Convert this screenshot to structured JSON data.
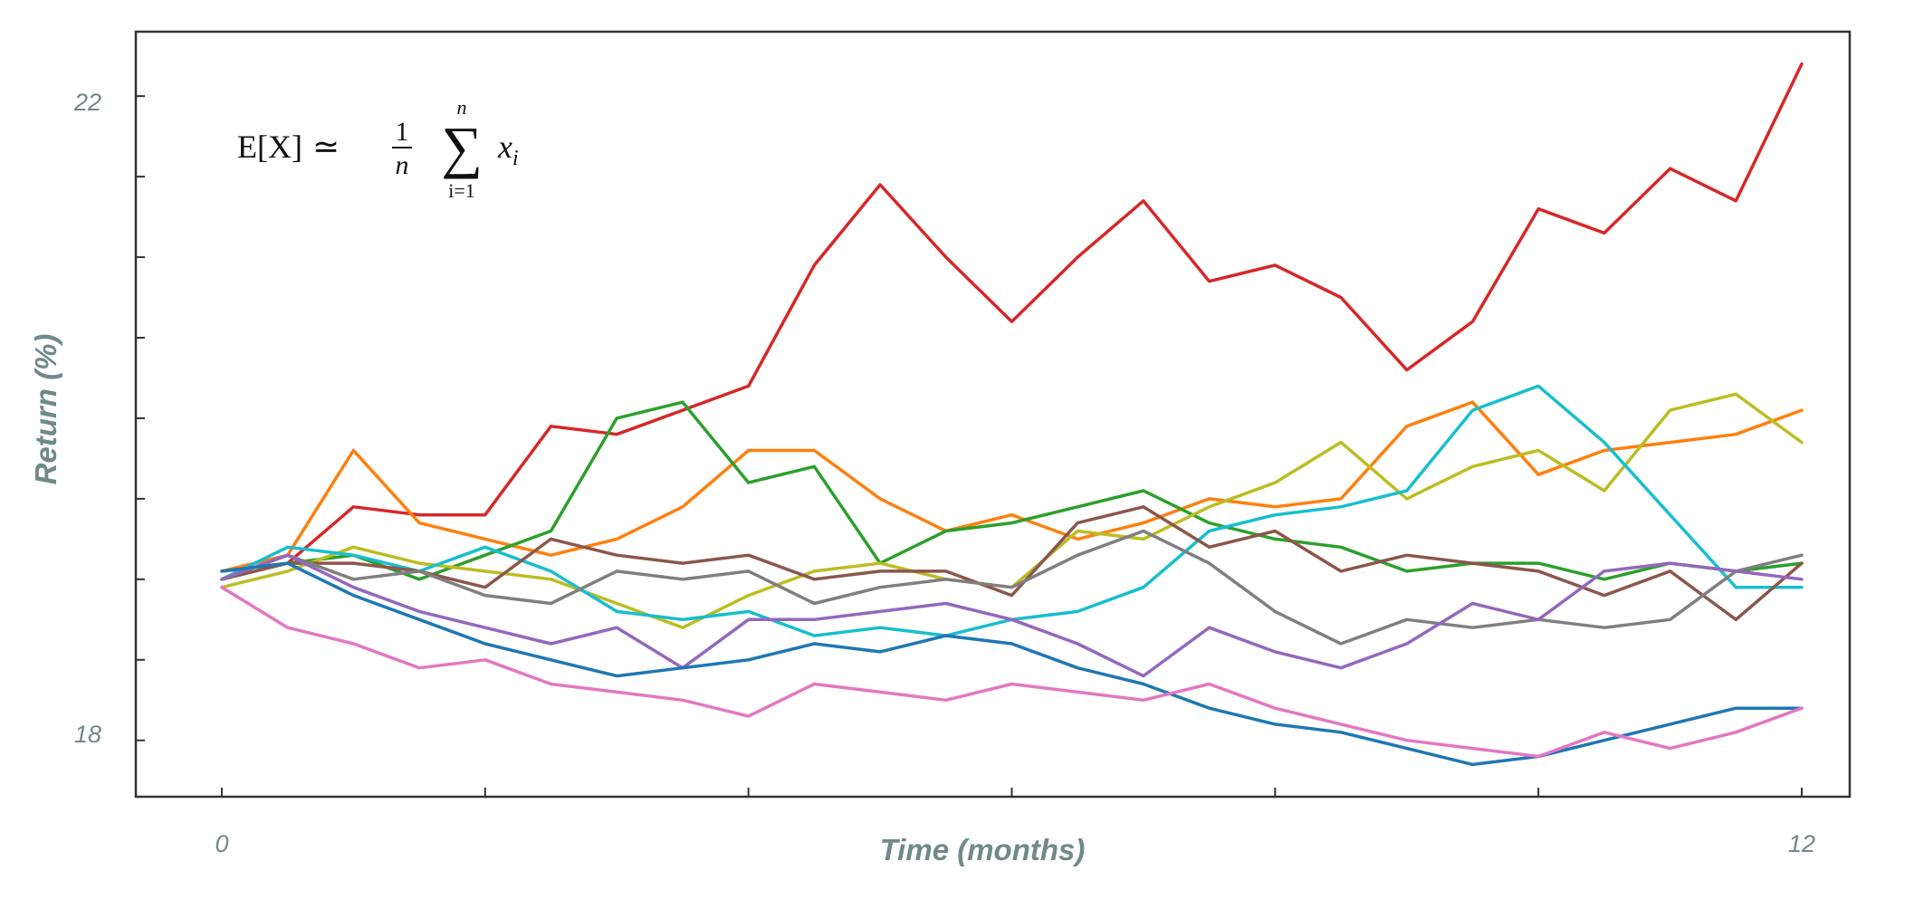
{
  "chart_data": {
    "type": "line",
    "title": "",
    "xlabel": "Time (months)",
    "ylabel": "Return (%)",
    "xlim": [
      0,
      12
    ],
    "ylim": [
      17.65,
      22.4
    ],
    "x_ticks": [
      0,
      12
    ],
    "x_tick_labels": [
      "0",
      "12"
    ],
    "y_ticks": [
      18,
      22
    ],
    "y_tick_labels": [
      "18",
      "22"
    ],
    "grid": false,
    "legend": "none",
    "annotation": {
      "lhs": "E[X]",
      "approx": "≃",
      "frac_num": "1",
      "frac_den": "n",
      "sum": "∑",
      "sum_upper": "n",
      "sum_lower": "i=1",
      "term": "x",
      "term_sub": "i"
    },
    "x": [
      0,
      0.5,
      1,
      1.5,
      2,
      2.5,
      3,
      3.5,
      4,
      4.5,
      5,
      5.5,
      6,
      6.5,
      7,
      7.5,
      8,
      8.5,
      9,
      9.5,
      10,
      10.5,
      11,
      11.5,
      12
    ],
    "series": [
      {
        "name": "red",
        "color": "#d62728",
        "values": [
          19.05,
          19.1,
          19.45,
          19.4,
          19.4,
          19.95,
          19.9,
          20.05,
          20.2,
          20.95,
          21.45,
          21.0,
          20.6,
          21.0,
          21.35,
          20.85,
          20.95,
          20.75,
          20.3,
          20.6,
          21.3,
          21.15,
          21.55,
          21.35,
          22.2
        ]
      },
      {
        "name": "orange",
        "color": "#ff7f0e",
        "values": [
          19.05,
          19.15,
          19.8,
          19.35,
          19.25,
          19.15,
          19.25,
          19.45,
          19.8,
          19.8,
          19.5,
          19.3,
          19.4,
          19.25,
          19.35,
          19.5,
          19.45,
          19.5,
          19.95,
          20.1,
          19.65,
          19.8,
          19.85,
          19.9,
          20.05
        ]
      },
      {
        "name": "green",
        "color": "#2ca02c",
        "values": [
          19.0,
          19.1,
          19.15,
          19.0,
          19.15,
          19.3,
          20.0,
          20.1,
          19.6,
          19.7,
          19.1,
          19.3,
          19.35,
          19.45,
          19.55,
          19.35,
          19.25,
          19.2,
          19.05,
          19.1,
          19.1,
          19.0,
          19.1,
          19.05,
          19.1
        ]
      },
      {
        "name": "olive",
        "color": "#bcbd22",
        "values": [
          18.95,
          19.05,
          19.2,
          19.1,
          19.05,
          19.0,
          18.85,
          18.7,
          18.9,
          19.05,
          19.1,
          19.0,
          18.95,
          19.3,
          19.25,
          19.45,
          19.6,
          19.85,
          19.5,
          19.7,
          19.8,
          19.55,
          20.05,
          20.15,
          19.85
        ]
      },
      {
        "name": "cyan",
        "color": "#17becf",
        "values": [
          19.0,
          19.2,
          19.15,
          19.05,
          19.2,
          19.05,
          18.8,
          18.75,
          18.8,
          18.65,
          18.7,
          18.65,
          18.75,
          18.8,
          18.95,
          19.3,
          19.4,
          19.45,
          19.55,
          20.05,
          20.2,
          19.85,
          19.4,
          18.95,
          18.95
        ]
      },
      {
        "name": "brown",
        "color": "#8c564b",
        "values": [
          19.0,
          19.1,
          19.1,
          19.05,
          18.95,
          19.25,
          19.15,
          19.1,
          19.15,
          19.0,
          19.05,
          19.05,
          18.9,
          19.35,
          19.45,
          19.2,
          19.3,
          19.05,
          19.15,
          19.1,
          19.05,
          18.9,
          19.05,
          18.75,
          19.1
        ]
      },
      {
        "name": "gray",
        "color": "#7f7f7f",
        "values": [
          19.0,
          19.15,
          19.0,
          19.05,
          18.9,
          18.85,
          19.05,
          19.0,
          19.05,
          18.85,
          18.95,
          19.0,
          18.95,
          19.15,
          19.3,
          19.1,
          18.8,
          18.6,
          18.75,
          18.7,
          18.75,
          18.7,
          18.75,
          19.05,
          19.15
        ]
      },
      {
        "name": "purple",
        "color": "#9467bd",
        "values": [
          19.0,
          19.15,
          18.95,
          18.8,
          18.7,
          18.6,
          18.7,
          18.45,
          18.75,
          18.75,
          18.8,
          18.85,
          18.75,
          18.6,
          18.4,
          18.7,
          18.55,
          18.45,
          18.6,
          18.85,
          18.75,
          19.05,
          19.1,
          19.05,
          19.0
        ]
      },
      {
        "name": "blue",
        "color": "#1f77b4",
        "values": [
          19.05,
          19.1,
          18.9,
          18.75,
          18.6,
          18.5,
          18.4,
          18.45,
          18.5,
          18.6,
          18.55,
          18.65,
          18.6,
          18.45,
          18.35,
          18.2,
          18.1,
          18.05,
          17.95,
          17.85,
          17.9,
          18.0,
          18.1,
          18.2,
          18.2
        ]
      },
      {
        "name": "pink",
        "color": "#e377c2",
        "values": [
          18.95,
          18.7,
          18.6,
          18.45,
          18.5,
          18.35,
          18.3,
          18.25,
          18.15,
          18.35,
          18.3,
          18.25,
          18.35,
          18.3,
          18.25,
          18.35,
          18.2,
          18.1,
          18.0,
          17.95,
          17.9,
          18.05,
          17.95,
          18.05,
          18.2
        ]
      }
    ]
  }
}
